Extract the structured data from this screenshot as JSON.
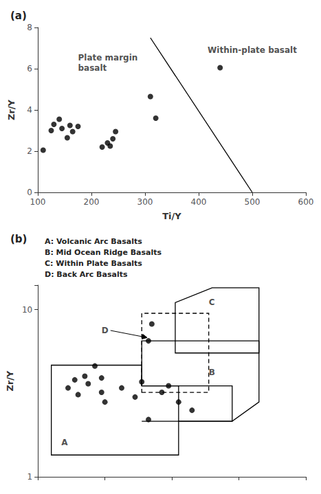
{
  "chart_data": [
    {
      "type": "scatter",
      "title": "(a)",
      "xlabel": "Ti/Y",
      "ylabel": "Zr/Y",
      "xlim": [
        100,
        600
      ],
      "ylim": [
        0,
        8
      ],
      "xticks": [
        100,
        200,
        300,
        400,
        500,
        600
      ],
      "yticks": [
        0,
        2,
        4,
        6,
        8
      ],
      "grid": false,
      "series": [
        {
          "type": "scatter",
          "marker": "circle",
          "color": "#000000",
          "x": [
            110,
            125,
            130,
            140,
            155,
            145,
            160,
            165,
            175,
            220,
            230,
            235,
            240,
            245,
            310,
            320,
            440
          ],
          "values": [
            2.05,
            3.0,
            3.3,
            3.55,
            2.65,
            3.1,
            3.25,
            2.95,
            3.2,
            2.2,
            2.4,
            2.25,
            2.6,
            2.95,
            4.65,
            3.6,
            6.05
          ]
        },
        {
          "type": "line",
          "line_style": "solid",
          "color": "#000000",
          "x": [
            310,
            500
          ],
          "values": [
            7.5,
            0.0
          ]
        }
      ],
      "annotations": [
        {
          "text": "Plate margin\nbasalt",
          "x": 175,
          "y": 6.8
        },
        {
          "text": "Within-plate basalt",
          "x": 500,
          "y": 6.9
        }
      ]
    },
    {
      "type": "scatter",
      "title": "(b)",
      "ylabel": "Zr/Y",
      "log": "y",
      "xlim": [
        100,
        500
      ],
      "ylim": [
        1,
        14
      ],
      "xticks": [
        100,
        200,
        300,
        400,
        500
      ],
      "yticks": [
        1,
        10
      ],
      "tick_labels": "y",
      "grid": false,
      "series": [
        {
          "type": "polygon",
          "line_style": "solid",
          "color": "#000000",
          "points": [
            [
              120,
              1.35
            ],
            [
              310,
              1.35
            ],
            [
              310,
              2.15
            ],
            [
              390,
              2.15
            ],
            [
              390,
              3.5
            ],
            [
              255,
              3.5
            ],
            [
              255,
              4.65
            ],
            [
              120,
              4.65
            ]
          ]
        },
        {
          "type": "polygon",
          "line_style": "solid",
          "color": "#000000",
          "points": [
            [
              255,
              2.15
            ],
            [
              390,
              2.15
            ],
            [
              430,
              2.8
            ],
            [
              430,
              6.5
            ],
            [
              255,
              6.5
            ],
            [
              255,
              3.5
            ],
            [
              310,
              3.5
            ],
            [
              310,
              2.15
            ]
          ]
        },
        {
          "type": "polygon",
          "line_style": "solid",
          "color": "#000000",
          "points": [
            [
              305,
              5.5
            ],
            [
              430,
              5.5
            ],
            [
              430,
              13.5
            ],
            [
              360,
              13.5
            ],
            [
              305,
              11.0
            ]
          ]
        },
        {
          "type": "polygon",
          "line_style": "dashed",
          "color": "#000000",
          "points": [
            [
              255,
              3.2
            ],
            [
              355,
              3.2
            ],
            [
              355,
              9.5
            ],
            [
              255,
              9.5
            ]
          ]
        },
        {
          "type": "scatter",
          "marker": "circle",
          "color": "#000000",
          "x": [
            145,
            155,
            160,
            170,
            175,
            185,
            195,
            195,
            200,
            225,
            245,
            255,
            265,
            285,
            295,
            310,
            330,
            265,
            270
          ],
          "values": [
            3.4,
            3.8,
            3.1,
            4.0,
            3.6,
            4.6,
            3.2,
            3.9,
            2.8,
            3.4,
            3.0,
            3.7,
            2.2,
            3.2,
            3.5,
            2.8,
            2.5,
            6.5,
            8.2
          ]
        }
      ],
      "annotations": [
        {
          "text": "A",
          "x": 135,
          "y": 1.5
        },
        {
          "text": "B",
          "x": 355,
          "y": 4.2
        },
        {
          "text": "C",
          "x": 355,
          "y": 11.0
        },
        {
          "text": "D",
          "x": 195,
          "y": 7.5,
          "arrow_to": [
            263,
            6.8
          ]
        },
        {
          "text": "A: Volcanic Arc Basalts\nB: Mid Ocean Ridge Basalts\nC: Within Plate Basalts\nD: Back Arc Basalts"
        }
      ]
    }
  ]
}
